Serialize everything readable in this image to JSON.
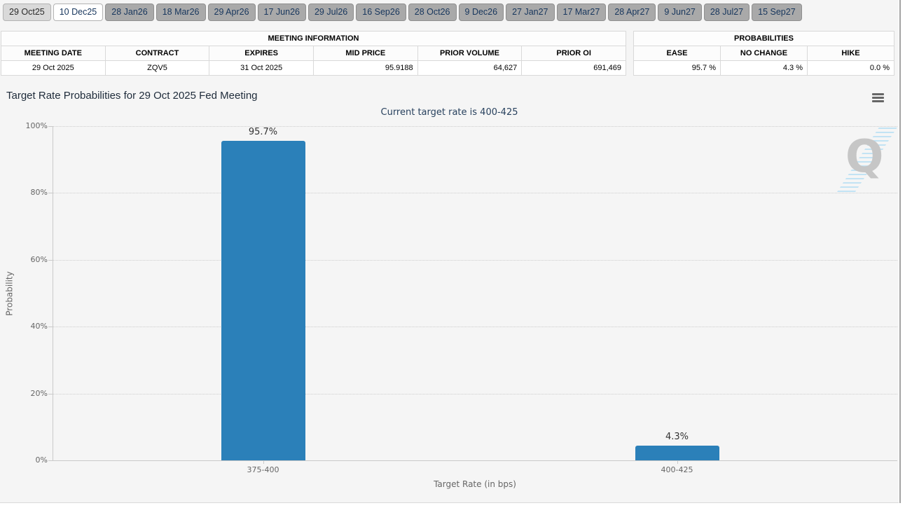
{
  "tabs": {
    "items": [
      {
        "label": "29 Oct25",
        "state": "current"
      },
      {
        "label": "10 Dec25",
        "state": "open"
      },
      {
        "label": "28 Jan26",
        "state": "default"
      },
      {
        "label": "18 Mar26",
        "state": "default"
      },
      {
        "label": "29 Apr26",
        "state": "default"
      },
      {
        "label": "17 Jun26",
        "state": "default"
      },
      {
        "label": "29 Jul26",
        "state": "default"
      },
      {
        "label": "16 Sep26",
        "state": "default"
      },
      {
        "label": "28 Oct26",
        "state": "default"
      },
      {
        "label": "9 Dec26",
        "state": "default"
      },
      {
        "label": "27 Jan27",
        "state": "default"
      },
      {
        "label": "17 Mar27",
        "state": "default"
      },
      {
        "label": "28 Apr27",
        "state": "default"
      },
      {
        "label": "9 Jun27",
        "state": "default"
      },
      {
        "label": "28 Jul27",
        "state": "default"
      },
      {
        "label": "15 Sep27",
        "state": "default"
      }
    ]
  },
  "meeting_info": {
    "title": "MEETING INFORMATION",
    "columns": [
      "MEETING DATE",
      "CONTRACT",
      "EXPIRES",
      "MID PRICE",
      "PRIOR VOLUME",
      "PRIOR OI"
    ],
    "values": [
      "29 Oct 2025",
      "ZQV5",
      "31 Oct 2025",
      "95.9188",
      "64,627",
      "691,469"
    ]
  },
  "probabilities": {
    "title": "PROBABILITIES",
    "columns": [
      "EASE",
      "NO CHANGE",
      "HIKE"
    ],
    "values": [
      "95.7 %",
      "4.3 %",
      "0.0 %"
    ]
  },
  "chart_data": {
    "type": "bar",
    "title": "Target Rate Probabilities for 29 Oct 2025 Fed Meeting",
    "subtitle": "Current target rate is 400-425",
    "categories": [
      "375-400",
      "400-425"
    ],
    "values": [
      95.7,
      4.3
    ],
    "data_labels": [
      "95.7%",
      "4.3%"
    ],
    "xlabel": "Target Rate (in bps)",
    "ylabel": "Probability",
    "ylim": [
      0,
      100
    ],
    "ytick_values": [
      0,
      20,
      40,
      60,
      80,
      100
    ],
    "ytick_labels": [
      "0%",
      "20%",
      "40%",
      "60%",
      "80%",
      "100%"
    ],
    "bar_color": "#2b80b9",
    "grid": "horizontal-dotted",
    "legend": "none"
  },
  "watermark": {
    "letter": "Q"
  }
}
